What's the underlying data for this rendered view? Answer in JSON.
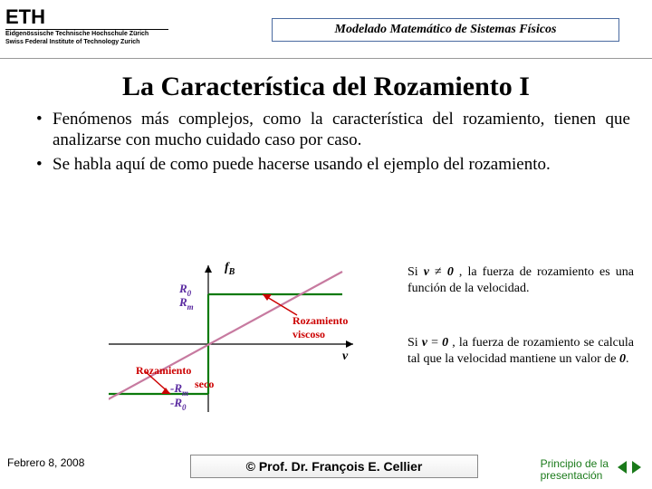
{
  "header": {
    "logo_text": "ETH",
    "logo_sub1": "Eidgenössische Technische Hochschule Zürich",
    "logo_sub2": "Swiss Federal Institute of Technology Zurich",
    "title": "Modelado Matemático de Sistemas Físicos"
  },
  "title": "La Característica del Rozamiento I",
  "bullets": [
    "Fenómenos más complejos, como la característica del rozamiento, tienen que analizarse con mucho cuidado caso por caso.",
    "Se habla aquí de como puede hacerse usando el ejemplo del rozamiento."
  ],
  "chart": {
    "y_label": "f",
    "y_label_sub": "B",
    "x_label": "v",
    "labels": {
      "R0": "R",
      "R0_sub": "0",
      "Rm": "R",
      "Rm_sub": "m",
      "mRm": "-R",
      "mRm_sub": "m",
      "mR0": "-R",
      "mR0_sub": "0",
      "seco": "seco",
      "roz": "Rozamiento",
      "viscoso": "viscoso"
    },
    "colors": {
      "axis": "#000000",
      "curve_green": "#0b7a0b",
      "curve_pink": "#c77aa0",
      "arrow_red": "#cc0000",
      "label_blue": "#5a2aa0",
      "label_red": "#cc0000"
    }
  },
  "side": {
    "p1_a": "Si ",
    "p1_v": "v",
    "p1_ne": " ≠ ",
    "p1_z": "0",
    "p1_b": " , la fuerza de rozamiento es una función de la velocidad.",
    "p2_a": "Si ",
    "p2_v": "v",
    "p2_eq": " = ",
    "p2_z": "0",
    "p2_b": " , la fuerza de rozamiento se calcula tal que la velocidad mantiene un valor de ",
    "p2_z2": "0",
    "p2_c": "."
  },
  "footer": {
    "date": "Febrero 8, 2008",
    "author": "©  Prof. Dr. François E. Cellier",
    "nav": "Principio de la presentación"
  }
}
